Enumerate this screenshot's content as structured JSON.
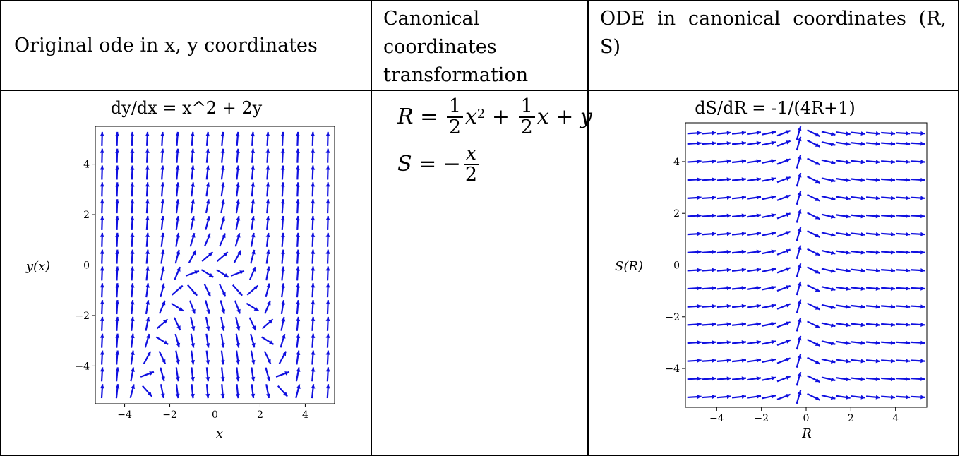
{
  "header": {
    "col1": "Original ode in x, y coordinates",
    "col2": "Canonical coordinates transformation",
    "col3": "ODE in canonical coordinates (R, S)"
  },
  "transformation": {
    "R_equation": "R = 1/2 x^2 + 1/2 x + y",
    "S_equation": "S = -x/2"
  },
  "chart_data": [
    {
      "type": "scatter",
      "title": "dy/dx = x^2 + 2y",
      "xlabel": "x",
      "ylabel": "y(x)",
      "xlim": [
        -5.3,
        5.3
      ],
      "ylim": [
        -5.5,
        5.5
      ],
      "xticks": [
        -4,
        -2,
        0,
        2,
        4
      ],
      "yticks": [
        -4,
        -2,
        0,
        2,
        4
      ],
      "x_tick_labels": [
        "−4",
        "−2",
        "0",
        "2",
        "4"
      ],
      "y_tick_labels": [
        "4",
        "2",
        "0",
        "−2",
        "−4"
      ],
      "y_tick_values": [
        4,
        2,
        0,
        -2,
        -4
      ],
      "field": "x*x + 2*y",
      "grid": [
        -5,
        -4.333,
        -3.667,
        -3,
        -2.333,
        -1.667,
        -1,
        -0.333,
        0.333,
        1,
        1.667,
        2.333,
        3,
        3.667,
        4.333,
        5
      ],
      "color": "#1010e0"
    },
    {
      "type": "scatter",
      "title": "dS/dR = -1/(4R+1)",
      "xlabel": "R",
      "ylabel": "S(R)",
      "xlim": [
        -5.4,
        5.4
      ],
      "ylim": [
        -5.5,
        5.5
      ],
      "xticks": [
        -4,
        -2,
        0,
        2,
        4
      ],
      "yticks": [
        4,
        2,
        0,
        -2,
        -4
      ],
      "x_tick_labels": [
        "−4",
        "−2",
        "0",
        "2",
        "4"
      ],
      "y_tick_labels": [
        "4",
        "2",
        "0",
        "−2",
        "−4"
      ],
      "y_tick_values": [
        4,
        2,
        0,
        -2,
        -4
      ],
      "field": "-1/(4*R+1)",
      "grid_x": [
        -5,
        -4.333,
        -3.667,
        -3,
        -2.333,
        -1.667,
        -1,
        -0.333,
        0.333,
        1,
        1.667,
        2.333,
        3,
        3.667,
        4.333,
        5
      ],
      "grid_y": [
        -5.1,
        -4.4,
        -3.7,
        -3.0,
        -2.3,
        -1.6,
        -0.9,
        -0.2,
        0.5,
        1.2,
        1.9,
        2.6,
        3.3,
        4.0,
        4.7,
        5.1
      ],
      "color": "#1010e0"
    }
  ]
}
